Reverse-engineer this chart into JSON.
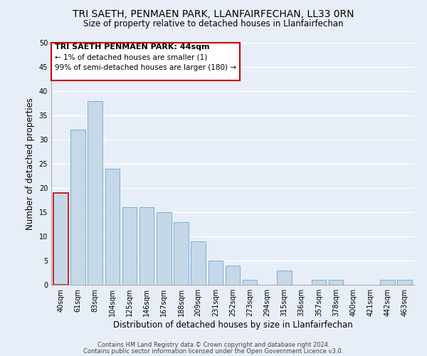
{
  "title": "TRI SAETH, PENMAEN PARK, LLANFAIRFECHAN, LL33 0RN",
  "subtitle": "Size of property relative to detached houses in Llanfairfechan",
  "xlabel": "Distribution of detached houses by size in Llanfairfechan",
  "ylabel": "Number of detached properties",
  "bin_labels": [
    "40sqm",
    "61sqm",
    "83sqm",
    "104sqm",
    "125sqm",
    "146sqm",
    "167sqm",
    "188sqm",
    "209sqm",
    "231sqm",
    "252sqm",
    "273sqm",
    "294sqm",
    "315sqm",
    "336sqm",
    "357sqm",
    "378sqm",
    "400sqm",
    "421sqm",
    "442sqm",
    "463sqm"
  ],
  "bar_values": [
    19,
    32,
    38,
    24,
    16,
    16,
    15,
    13,
    9,
    5,
    4,
    1,
    0,
    3,
    0,
    1,
    1,
    0,
    0,
    1,
    1
  ],
  "bar_color": "#c5d8e8",
  "bar_edge_color": "#7bafd4",
  "highlight_bar_index": 0,
  "highlight_edge_color": "#cc0000",
  "ylim": [
    0,
    50
  ],
  "yticks": [
    0,
    5,
    10,
    15,
    20,
    25,
    30,
    35,
    40,
    45,
    50
  ],
  "annotation_line1": "TRI SAETH PENMAEN PARK: 44sqm",
  "annotation_line2": "← 1% of detached houses are smaller (1)",
  "annotation_line3": "99% of semi-detached houses are larger (180) →",
  "footer_line1": "Contains HM Land Registry data © Crown copyright and database right 2024.",
  "footer_line2": "Contains public sector information licensed under the Open Government Licence v3.0.",
  "bg_color": "#e8eef8",
  "plot_bg_color": "#e8eef8",
  "grid_color": "#ffffff",
  "title_fontsize": 10,
  "subtitle_fontsize": 8.5,
  "axis_label_fontsize": 8.5,
  "tick_fontsize": 7,
  "footer_fontsize": 6,
  "annot_fontsize_title": 8,
  "annot_fontsize_body": 7.5
}
